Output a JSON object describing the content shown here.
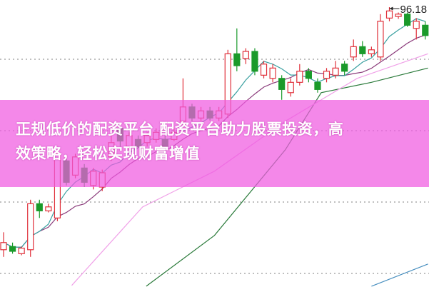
{
  "chart_data": {
    "type": "candlestick",
    "title": "",
    "ylim": [
      61.0,
      97.1
    ],
    "grid": "dotted-horizontal",
    "max_annotation": "96.18",
    "colors": {
      "up": "#e0303a",
      "down": "#1a9a2a",
      "ma5": "#3aa0a0",
      "ma10": "#8a3a7a",
      "ma20": "#f0a0e8",
      "ma30": "#2a7a3a",
      "ma60": "#4a90c0",
      "grid": "#999999"
    },
    "candles": [
      [
        65.6,
        67.8,
        64.7,
        66.5
      ],
      [
        66.0,
        66.5,
        65.1,
        65.4
      ],
      [
        65.1,
        66.0,
        64.9,
        65.8
      ],
      [
        65.6,
        71.9,
        64.7,
        71.4
      ],
      [
        71.4,
        71.9,
        69.6,
        70.5
      ],
      [
        70.5,
        71.4,
        70.3,
        71.0
      ],
      [
        69.6,
        78.2,
        69.2,
        77.7
      ],
      [
        76.8,
        77.3,
        73.7,
        74.1
      ],
      [
        75.0,
        77.7,
        74.6,
        77.3
      ],
      [
        75.9,
        76.4,
        73.5,
        74.1
      ],
      [
        73.7,
        75.9,
        73.2,
        75.5
      ],
      [
        73.5,
        75.7,
        73.0,
        75.3
      ],
      [
        77.3,
        80.0,
        76.8,
        79.1
      ],
      [
        80.9,
        81.3,
        78.6,
        79.3
      ],
      [
        78.6,
        80.4,
        78.2,
        80.0
      ],
      [
        79.5,
        80.0,
        78.4,
        78.6
      ],
      [
        79.1,
        80.4,
        78.6,
        80.0
      ],
      [
        79.5,
        80.9,
        79.1,
        80.4
      ],
      [
        79.5,
        80.0,
        78.2,
        78.6
      ],
      [
        79.5,
        80.9,
        79.3,
        80.4
      ],
      [
        81.8,
        87.2,
        81.3,
        83.6
      ],
      [
        83.6,
        84.0,
        81.8,
        82.2
      ],
      [
        82.2,
        83.6,
        81.8,
        83.1
      ],
      [
        83.1,
        83.6,
        81.9,
        82.2
      ],
      [
        82.2,
        83.6,
        81.8,
        83.1
      ],
      [
        82.7,
        90.8,
        82.2,
        90.3
      ],
      [
        90.3,
        93.5,
        88.1,
        88.8
      ],
      [
        89.7,
        91.0,
        89.0,
        90.6
      ],
      [
        90.6,
        91.0,
        87.6,
        88.1
      ],
      [
        87.6,
        89.4,
        87.2,
        89.0
      ],
      [
        87.2,
        89.0,
        86.7,
        88.5
      ],
      [
        87.2,
        87.6,
        84.5,
        85.8
      ],
      [
        85.4,
        87.2,
        84.9,
        86.7
      ],
      [
        86.7,
        89.0,
        86.3,
        88.1
      ],
      [
        88.1,
        88.5,
        86.7,
        87.2
      ],
      [
        86.7,
        87.2,
        85.4,
        85.8
      ],
      [
        87.2,
        88.5,
        86.7,
        88.1
      ],
      [
        87.6,
        89.4,
        87.2,
        88.5
      ],
      [
        89.0,
        89.4,
        87.6,
        88.1
      ],
      [
        89.9,
        92.1,
        89.4,
        91.2
      ],
      [
        91.2,
        91.9,
        89.9,
        90.3
      ],
      [
        90.3,
        91.2,
        89.9,
        90.8
      ],
      [
        89.9,
        95.3,
        89.4,
        94.4
      ],
      [
        94.8,
        96.18,
        94.4,
        95.7
      ],
      [
        95.0,
        95.5,
        94.7,
        95.3
      ],
      [
        95.3,
        95.5,
        93.7,
        93.9
      ],
      [
        93.5,
        94.8,
        92.1,
        94.4
      ],
      [
        93.9,
        94.4,
        92.1,
        92.6
      ]
    ],
    "candle_format": [
      "open",
      "high",
      "low",
      "close"
    ],
    "ma_lines": {
      "ma20": [
        [
          7.6,
          61.1
        ],
        [
          15.5,
          71.0
        ],
        [
          23.5,
          75.5
        ],
        [
          31.4,
          81.8
        ],
        [
          39.4,
          87.2
        ],
        [
          47.3,
          90.3
        ]
      ],
      "ma30": [
        [
          15.9,
          61.0
        ],
        [
          23.5,
          67.4
        ],
        [
          31.4,
          78.2
        ],
        [
          35.4,
          85.4
        ],
        [
          41,
          86.7
        ],
        [
          47.3,
          88.5
        ]
      ],
      "ma60": [
        [
          41,
          61.0
        ],
        [
          47.3,
          63.8
        ]
      ]
    }
  },
  "banner": {
    "line1": "正规低价的配资平台 配资平台助力股票投资，高",
    "line2": "效策略，轻松实现财富增值"
  }
}
